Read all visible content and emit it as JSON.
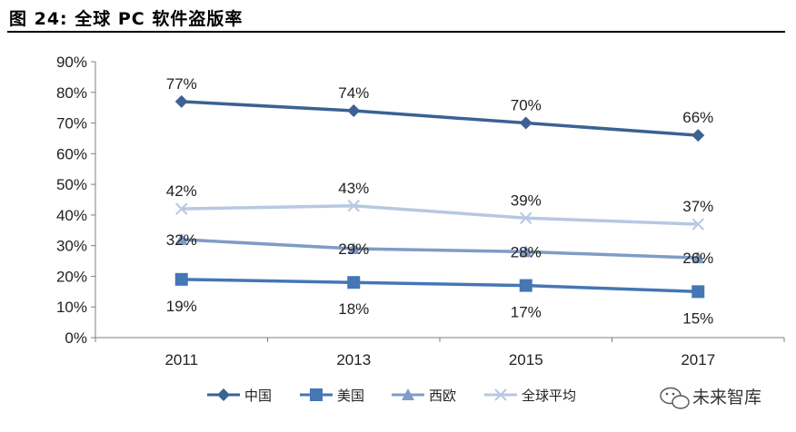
{
  "figure": {
    "title": "图 24:  全球 PC 软件盗版率"
  },
  "watermark": {
    "text": "未来智库",
    "icon": "wechat-icon"
  },
  "colors": {
    "china": "#3C6192",
    "usa": "#4576B5",
    "western_europe": "#7F9CC6",
    "global_avg": "#B7C8E2",
    "axis": "#7f7f7f"
  },
  "chart_data": {
    "type": "line",
    "title": "全球 PC 软件盗版率",
    "xlabel": "",
    "ylabel": "",
    "categories": [
      "2011",
      "2013",
      "2015",
      "2017"
    ],
    "ylim": [
      0,
      90
    ],
    "yticks": [
      0,
      10,
      20,
      30,
      40,
      50,
      60,
      70,
      80,
      90
    ],
    "ytick_labels": [
      "0%",
      "10%",
      "20%",
      "30%",
      "40%",
      "50%",
      "60%",
      "70%",
      "80%",
      "90%"
    ],
    "legend_position": "bottom",
    "series": [
      {
        "key": "china",
        "name": "中国",
        "marker": "diamond",
        "values": [
          77,
          74,
          70,
          66
        ],
        "labels": [
          "77%",
          "74%",
          "70%",
          "66%"
        ],
        "label_position": "above"
      },
      {
        "key": "usa",
        "name": "美国",
        "marker": "square",
        "values": [
          19,
          18,
          17,
          15
        ],
        "labels": [
          "19%",
          "18%",
          "17%",
          "15%"
        ],
        "label_position": "below"
      },
      {
        "key": "western_europe",
        "name": "西欧",
        "marker": "triangle",
        "values": [
          32,
          29,
          28,
          26
        ],
        "labels": [
          "32%",
          "29%",
          "28%",
          "26%"
        ],
        "label_position": "center"
      },
      {
        "key": "global_avg",
        "name": "全球平均",
        "marker": "cross",
        "values": [
          42,
          43,
          39,
          37
        ],
        "labels": [
          "42%",
          "43%",
          "39%",
          "37%"
        ],
        "label_position": "above"
      }
    ]
  }
}
